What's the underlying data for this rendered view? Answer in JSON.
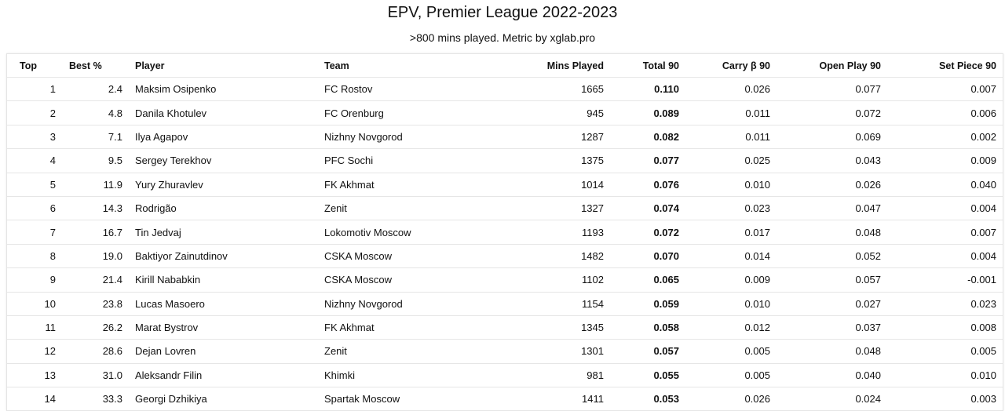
{
  "header": {
    "title": "EPV, Premier League 2022-2023",
    "subtitle": ">800 mins played. Metric by xglab.pro"
  },
  "table": {
    "columns": [
      "Top",
      "Best %",
      "Player",
      "Team",
      "Mins Played",
      "Total 90",
      "Carry β 90",
      "Open Play 90",
      "Set Piece 90"
    ],
    "rows": [
      [
        "1",
        "2.4",
        "Maksim Osipenko",
        "FC Rostov",
        "1665",
        "0.110",
        "0.026",
        "0.077",
        "0.007"
      ],
      [
        "2",
        "4.8",
        "Danila Khotulev",
        "FC Orenburg",
        "945",
        "0.089",
        "0.011",
        "0.072",
        "0.006"
      ],
      [
        "3",
        "7.1",
        "Ilya Agapov",
        "Nizhny Novgorod",
        "1287",
        "0.082",
        "0.011",
        "0.069",
        "0.002"
      ],
      [
        "4",
        "9.5",
        "Sergey Terekhov",
        "PFC Sochi",
        "1375",
        "0.077",
        "0.025",
        "0.043",
        "0.009"
      ],
      [
        "5",
        "11.9",
        "Yury Zhuravlev",
        "FK Akhmat",
        "1014",
        "0.076",
        "0.010",
        "0.026",
        "0.040"
      ],
      [
        "6",
        "14.3",
        "Rodrigão",
        "Zenit",
        "1327",
        "0.074",
        "0.023",
        "0.047",
        "0.004"
      ],
      [
        "7",
        "16.7",
        "Tin Jedvaj",
        "Lokomotiv Moscow",
        "1193",
        "0.072",
        "0.017",
        "0.048",
        "0.007"
      ],
      [
        "8",
        "19.0",
        "Baktiyor Zainutdinov",
        "CSKA Moscow",
        "1482",
        "0.070",
        "0.014",
        "0.052",
        "0.004"
      ],
      [
        "9",
        "21.4",
        "Kirill Nababkin",
        "CSKA Moscow",
        "1102",
        "0.065",
        "0.009",
        "0.057",
        "-0.001"
      ],
      [
        "10",
        "23.8",
        "Lucas Masoero",
        "Nizhny Novgorod",
        "1154",
        "0.059",
        "0.010",
        "0.027",
        "0.023"
      ],
      [
        "11",
        "26.2",
        "Marat Bystrov",
        "FK Akhmat",
        "1345",
        "0.058",
        "0.012",
        "0.037",
        "0.008"
      ],
      [
        "12",
        "28.6",
        "Dejan Lovren",
        "Zenit",
        "1301",
        "0.057",
        "0.005",
        "0.048",
        "0.005"
      ],
      [
        "13",
        "31.0",
        "Aleksandr Filin",
        "Khimki",
        "981",
        "0.055",
        "0.005",
        "0.040",
        "0.010"
      ],
      [
        "14",
        "33.3",
        "Georgi Dzhikiya",
        "Spartak Moscow",
        "1411",
        "0.053",
        "0.026",
        "0.024",
        "0.003"
      ]
    ]
  }
}
